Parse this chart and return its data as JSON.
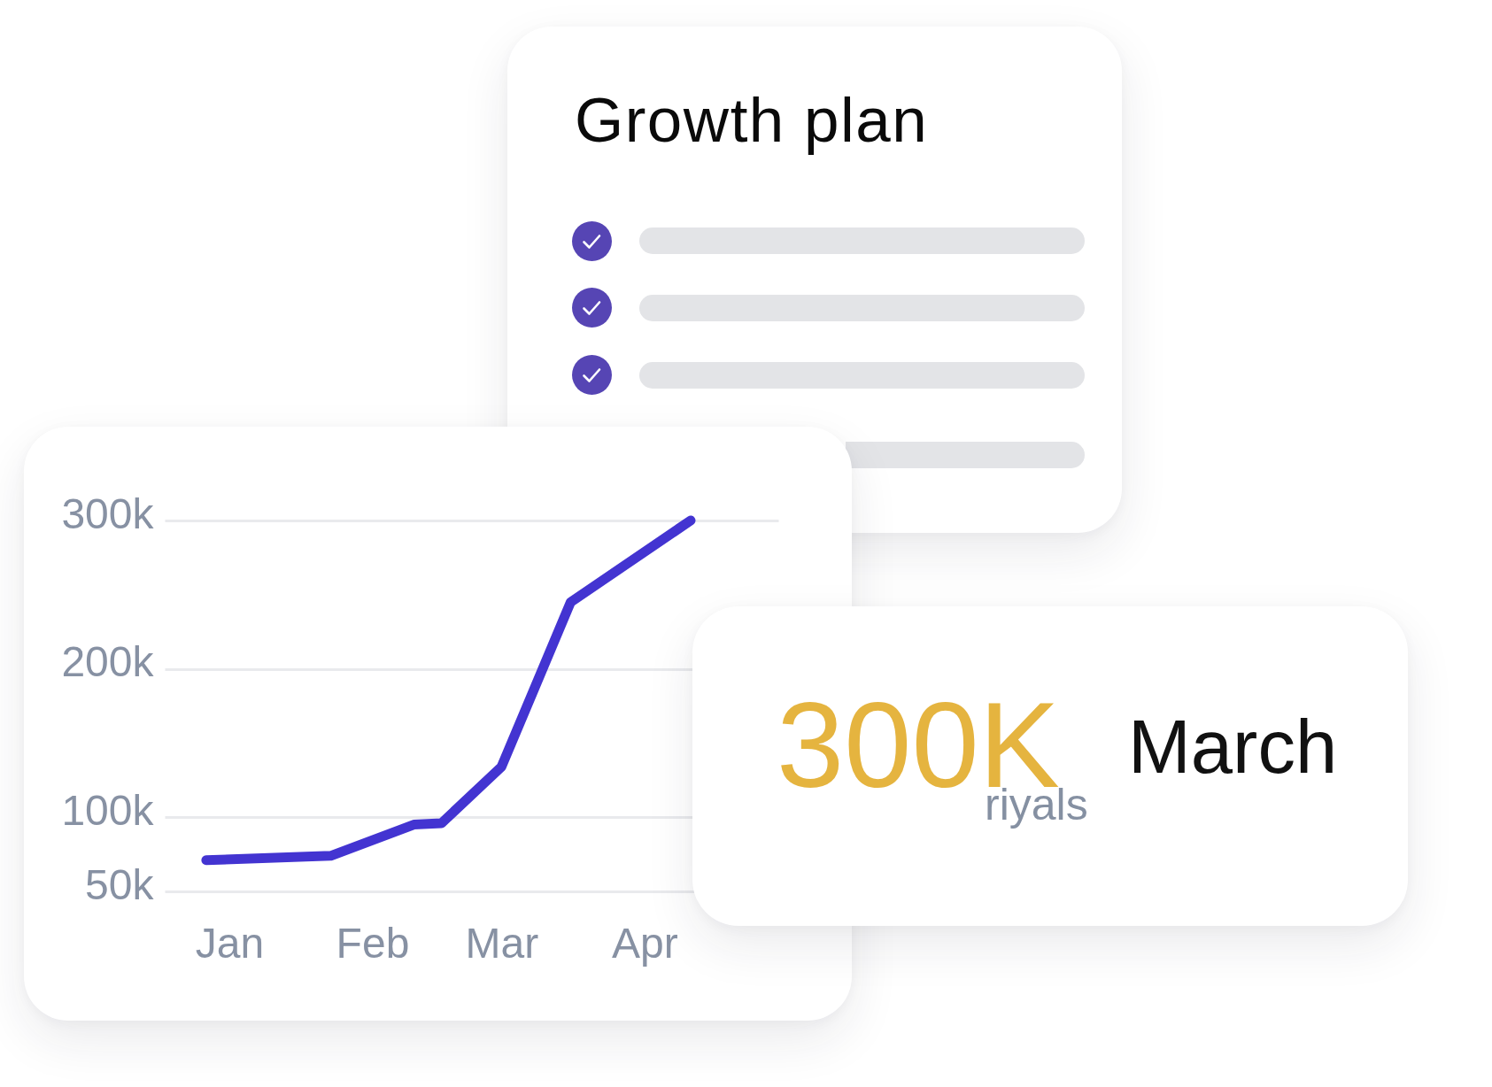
{
  "chart_data": [
    {
      "type": "line",
      "x": [
        "--01-10",
        "--02-06",
        "--02-24",
        "--03-02",
        "--03-15",
        "--03-30",
        "--04-25"
      ],
      "series": [
        {
          "color": "#4334d1",
          "values": [
            71000,
            74000,
            95000,
            96000,
            134000,
            245000,
            300000
          ]
        }
      ],
      "xlim": [
        "--01-01",
        "--05-14"
      ],
      "xticks": [
        {
          "value": "--01-15",
          "label": "Jan"
        },
        {
          "value": "--02-15",
          "label": "Feb"
        },
        {
          "value": "--03-15",
          "label": "Mar"
        },
        {
          "value": "--04-15",
          "label": "Apr"
        }
      ],
      "ylim": [
        50000,
        300000
      ],
      "yticks": [
        {
          "value": 50000,
          "label": "50k"
        },
        {
          "value": 100000,
          "label": "100k"
        },
        {
          "value": 200000,
          "label": "200k"
        },
        {
          "value": 300000,
          "label": "300k"
        }
      ],
      "grid": "y"
    },
    {
      "type": "other",
      "title": "Growth plan"
    },
    {
      "type": "other",
      "annotations": [
        "300K",
        "riyals",
        "March"
      ]
    }
  ]
}
